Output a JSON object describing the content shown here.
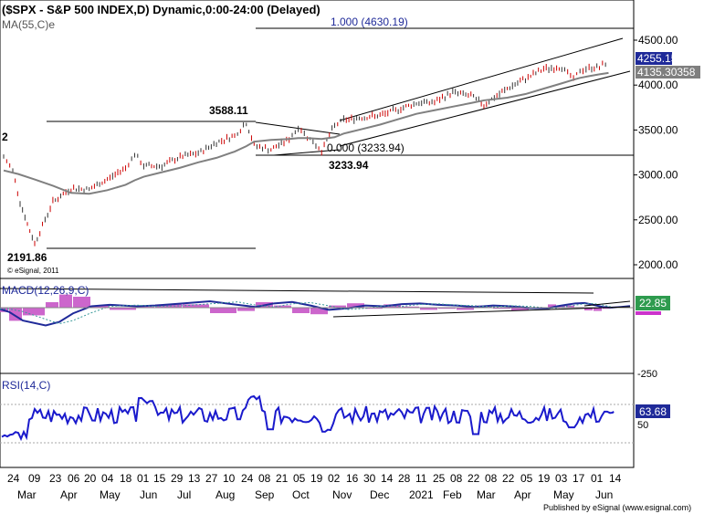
{
  "title": "($SPX - S&P 500 INDEX,D) Dynamic,0:00-24:00 (Delayed)",
  "ma_label": "MA(55,C)e",
  "copyright": "© eSignal, 2011",
  "footer": "Published by eSignal (www.esignal.com)",
  "annotations": {
    "fib_top": "1.000 (4630.19)",
    "fib_zero": "0.000 (3233.94)",
    "high_label": "3588.11",
    "low_label": "3233.94",
    "bottom_label": "2191.86",
    "left_edge": "2"
  },
  "price_axis": [
    "4500.00",
    "4000.00",
    "3500.00",
    "3000.00",
    "2500.00",
    "2000.00"
  ],
  "last_price": "4255.15",
  "ma_value": "4135.30358",
  "macd": {
    "label": "MACD(12,26,9,C)",
    "value": "22.85",
    "value2": "",
    "tick": "-250"
  },
  "rsi": {
    "label": "RSI(14,C)",
    "value": "63.68",
    "tick": "50"
  },
  "x_axis": {
    "days": [
      "24",
      "09",
      "23",
      "06",
      "20",
      "04",
      "18",
      "01",
      "15",
      "29",
      "13",
      "27",
      "10",
      "24",
      "08",
      "21",
      "05",
      "19",
      "02",
      "16",
      "30",
      "14",
      "28",
      "11",
      "25",
      "08",
      "22",
      "08",
      "22",
      "05",
      "19",
      "03",
      "17",
      "01",
      "14"
    ],
    "months": [
      "Mar",
      "Apr",
      "May",
      "Jun",
      "Jul",
      "Aug",
      "Sep",
      "Oct",
      "Nov",
      "Dec",
      "2021",
      "Feb",
      "Mar",
      "Apr",
      "May",
      "Jun"
    ]
  },
  "colors": {
    "price_bar": "#cc0000",
    "ma": "#808080",
    "macd": "#1f2a99",
    "rsi": "#1a1acc",
    "histogram": "#cc66cc",
    "last_price_bg": "#1f2a99",
    "ma_bg": "#7f7f7f",
    "macd_bg": "#2e9b4e",
    "rsi_bg": "#1f2a99"
  },
  "chart_data": {
    "type": "line",
    "series_name": "S&P 500 index daily price",
    "x": [
      "2020-03-23",
      "2020-04-06",
      "2020-04-20",
      "2020-05-04",
      "2020-05-18",
      "2020-06-01",
      "2020-06-08",
      "2020-06-15",
      "2020-06-29",
      "2020-07-13",
      "2020-07-27",
      "2020-08-10",
      "2020-08-24",
      "2020-09-02",
      "2020-09-08",
      "2020-09-21",
      "2020-10-05",
      "2020-10-12",
      "2020-10-19",
      "2020-10-30",
      "2020-11-09",
      "2020-11-16",
      "2020-11-30",
      "2020-12-14",
      "2020-12-28",
      "2021-01-11",
      "2021-01-25",
      "2021-02-08",
      "2021-02-22",
      "2021-03-04",
      "2021-03-22",
      "2021-04-05",
      "2021-04-19",
      "2021-05-03",
      "2021-05-12",
      "2021-05-17",
      "2021-05-24",
      "2021-06-01",
      "2021-06-08"
    ],
    "close": [
      2237,
      2700,
      2850,
      2840,
      2950,
      3080,
      3230,
      3100,
      3100,
      3200,
      3240,
      3360,
      3440,
      3580,
      3330,
      3280,
      3400,
      3530,
      3430,
      3270,
      3550,
      3610,
      3640,
      3660,
      3730,
      3800,
      3810,
      3920,
      3880,
      3780,
      3960,
      4070,
      4180,
      4200,
      4063,
      4160,
      4190,
      4200,
      4255
    ],
    "ma55": [
      2950,
      2880,
      2800,
      2790,
      2830,
      2890,
      2940,
      2980,
      3030,
      3080,
      3140,
      3190,
      3260,
      3320,
      3370,
      3390,
      3400,
      3410,
      3410,
      3400,
      3420,
      3460,
      3510,
      3560,
      3620,
      3680,
      3720,
      3760,
      3800,
      3830,
      3860,
      3900,
      3960,
      4020,
      4060,
      4080,
      4100,
      4120,
      4135
    ],
    "fib_levels": [
      {
        "ratio": 1.0,
        "price": 4630.19
      },
      {
        "ratio": 0.0,
        "price": 3233.94
      }
    ],
    "ylim": [
      1900,
      4700
    ],
    "last": 4255.15,
    "ma_last": 4135.30358,
    "macd_last": 22.85,
    "rsi_last": 63.68
  }
}
